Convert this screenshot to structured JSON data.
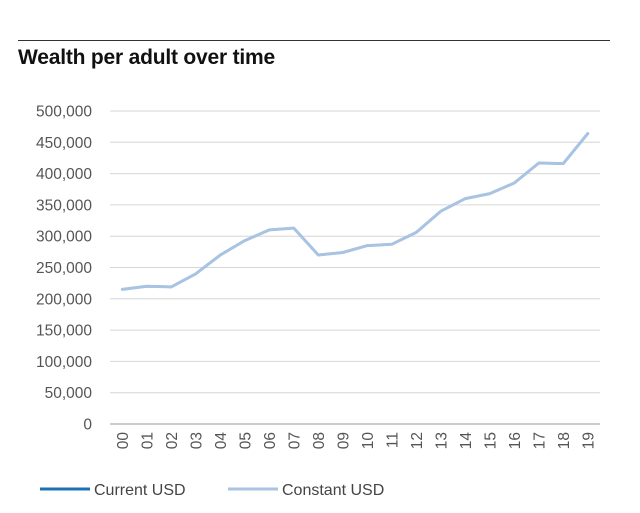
{
  "chart_data": {
    "type": "line",
    "title": "Wealth per adult over time",
    "xlabel": "",
    "ylabel": "",
    "categories": [
      "00",
      "01",
      "02",
      "03",
      "04",
      "05",
      "06",
      "07",
      "08",
      "09",
      "10",
      "11",
      "12",
      "13",
      "14",
      "15",
      "16",
      "17",
      "18",
      "19"
    ],
    "y_ticks": [
      "500,000",
      "450,000",
      "400,000",
      "350,000",
      "300,000",
      "250,000",
      "200,000",
      "150,000",
      "100,000",
      "50,000",
      "0"
    ],
    "ylim": [
      0,
      500000
    ],
    "grid": "horizontal",
    "legend_position": "bottom-left",
    "series": [
      {
        "name": "Current USD",
        "color": "#1f6fb5",
        "values": [
          215000,
          220000,
          219000,
          240000,
          270000,
          293000,
          310000,
          313000,
          270000,
          274000,
          285000,
          287000,
          306000,
          340000,
          360000,
          368000,
          385000,
          417000,
          416000,
          464000
        ]
      },
      {
        "name": "Constant USD",
        "color": "#a9c4e2",
        "values": [
          215000,
          220000,
          219000,
          240000,
          270000,
          293000,
          310000,
          313000,
          270000,
          274000,
          285000,
          287000,
          306000,
          340000,
          360000,
          368000,
          385000,
          417000,
          416000,
          464000
        ]
      }
    ]
  }
}
